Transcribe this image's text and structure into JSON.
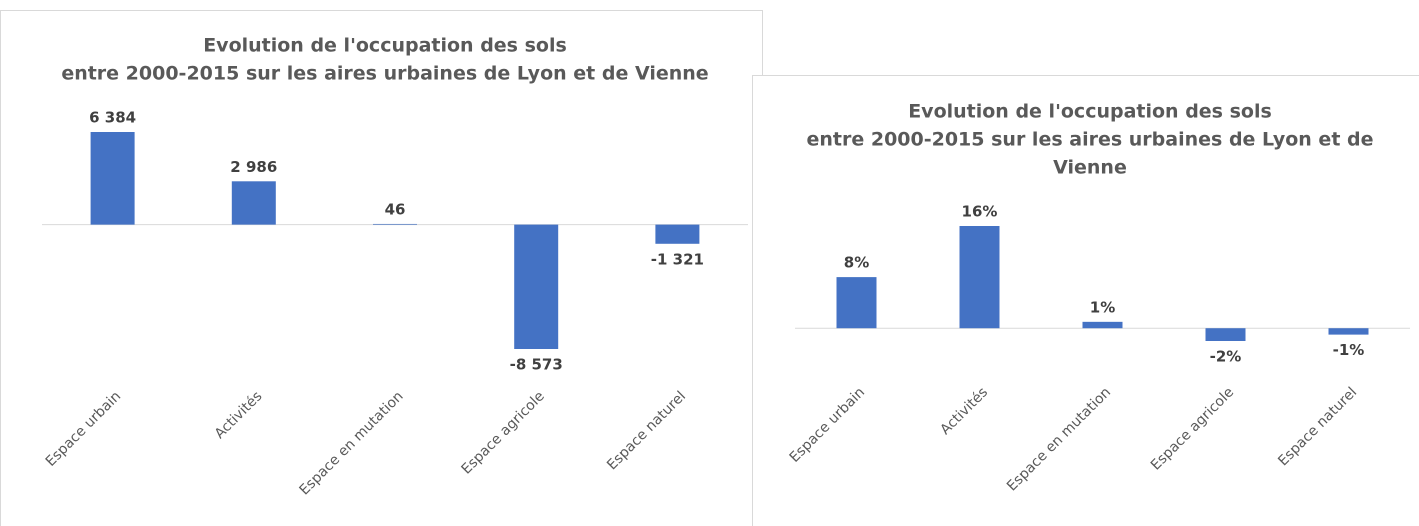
{
  "chart_data": [
    {
      "type": "bar",
      "title": [
        "Evolution de l'occupation des sols",
        "entre 2000-2015 sur les aires urbaines de Lyon et de Vienne"
      ],
      "categories": [
        "Espace urbain",
        "Activités",
        "Espace en mutation",
        "Espace agricole",
        "Espace naturel"
      ],
      "values": [
        6384,
        2986,
        46,
        -8573,
        -1321
      ],
      "value_labels": [
        "6 384",
        "2 986",
        "46",
        "-8 573",
        "-1 321"
      ],
      "color": "#4472c4"
    },
    {
      "type": "bar",
      "title": [
        "Evolution de l'occupation des sols",
        "entre 2000-2015 sur les aires urbaines de Lyon et de",
        "Vienne"
      ],
      "categories": [
        "Espace urbain",
        "Activités",
        "Espace en mutation",
        "Espace agricole",
        "Espace naturel"
      ],
      "values": [
        8,
        16,
        1,
        -2,
        -1
      ],
      "value_labels": [
        "8%",
        "16%",
        "1%",
        "-2%",
        "-1%"
      ],
      "color": "#4472c4"
    }
  ]
}
